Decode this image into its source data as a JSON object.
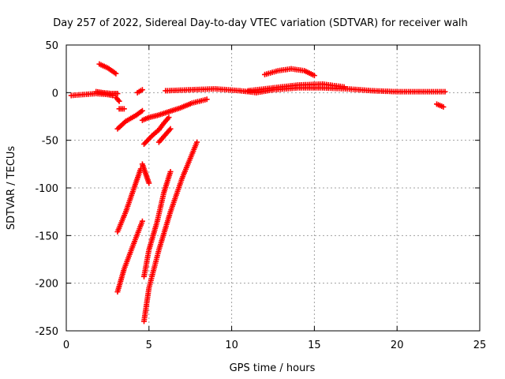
{
  "chart_data": {
    "type": "scatter",
    "title": "Day 257 of 2022, Sidereal Day-to-day VTEC variation (SDTVAR) for receiver walh",
    "xlabel": "GPS time / hours",
    "ylabel": "SDTVAR / TECUs",
    "xlim": [
      0,
      25
    ],
    "ylim": [
      -250,
      50
    ],
    "xticks": [
      0,
      5,
      10,
      15,
      20,
      25
    ],
    "yticks": [
      -250,
      -200,
      -150,
      -100,
      -50,
      0,
      50
    ],
    "xtick_labels": [
      "0",
      "5",
      "10",
      "15",
      "20",
      "25"
    ],
    "ytick_labels": [
      "-250",
      "-200",
      "-150",
      "-100",
      "-50",
      "0",
      "50"
    ],
    "grid": true,
    "marker_color": "#ff0000",
    "series": [
      {
        "x": [
          0.3,
          1.0,
          1.8,
          2.5,
          2.8
        ],
        "y": [
          -3,
          -2,
          -1,
          -2,
          -3
        ]
      },
      {
        "x": [
          1.8,
          2.2,
          2.7,
          3.1
        ],
        "y": [
          1,
          0,
          -1,
          -1
        ]
      },
      {
        "x": [
          2.0,
          2.5,
          3.0
        ],
        "y": [
          30,
          26,
          20
        ]
      },
      {
        "x": [
          3.0,
          3.2
        ],
        "y": [
          -5,
          -9
        ]
      },
      {
        "x": [
          3.2,
          3.5
        ],
        "y": [
          -17,
          -17
        ]
      },
      {
        "x": [
          3.1,
          3.6,
          4.2,
          4.6
        ],
        "y": [
          -38,
          -30,
          -24,
          -19
        ]
      },
      {
        "x": [
          4.3,
          4.6
        ],
        "y": [
          0,
          3
        ]
      },
      {
        "x": [
          3.1,
          3.6,
          4.1,
          4.5
        ],
        "y": [
          -146,
          -125,
          -100,
          -80
        ]
      },
      {
        "x": [
          3.1,
          3.5,
          4.0,
          4.6
        ],
        "y": [
          -209,
          -185,
          -162,
          -135
        ]
      },
      {
        "x": [
          4.6,
          4.8,
          5.0
        ],
        "y": [
          -75,
          -85,
          -95
        ]
      },
      {
        "x": [
          4.6,
          5.0,
          5.5,
          6.2,
          6.9,
          7.6,
          8.5
        ],
        "y": [
          -29,
          -26,
          -24,
          -20,
          -16,
          -11,
          -7
        ]
      },
      {
        "x": [
          4.7,
          5.2,
          5.6,
          5.9,
          6.2
        ],
        "y": [
          -54,
          -45,
          -39,
          -32,
          -26
        ]
      },
      {
        "x": [
          5.6,
          5.9,
          6.3
        ],
        "y": [
          -52,
          -46,
          -38
        ]
      },
      {
        "x": [
          4.7,
          5.0,
          5.5,
          5.9,
          6.3
        ],
        "y": [
          -193,
          -165,
          -135,
          -105,
          -83
        ]
      },
      {
        "x": [
          4.7,
          5.0,
          5.6,
          6.3,
          7.0,
          7.9
        ],
        "y": [
          -240,
          -205,
          -165,
          -125,
          -90,
          -52
        ]
      },
      {
        "x": [
          6.0,
          7.5,
          9.0,
          10.5,
          11.5,
          12.5,
          14.0,
          15.5,
          17.0,
          18.5,
          20.0,
          21.5,
          22.9
        ],
        "y": [
          2,
          3,
          4,
          2,
          0,
          3,
          5,
          5,
          4,
          2,
          1,
          1,
          1
        ]
      },
      {
        "x": [
          11.0,
          12.5,
          14.0,
          15.5,
          16.8
        ],
        "y": [
          2,
          5,
          8,
          9,
          6
        ]
      },
      {
        "x": [
          12.0,
          12.8,
          13.6,
          14.4,
          15.0
        ],
        "y": [
          19,
          23,
          25,
          23,
          18
        ]
      },
      {
        "x": [
          22.4,
          22.8
        ],
        "y": [
          -12,
          -15
        ]
      }
    ]
  }
}
